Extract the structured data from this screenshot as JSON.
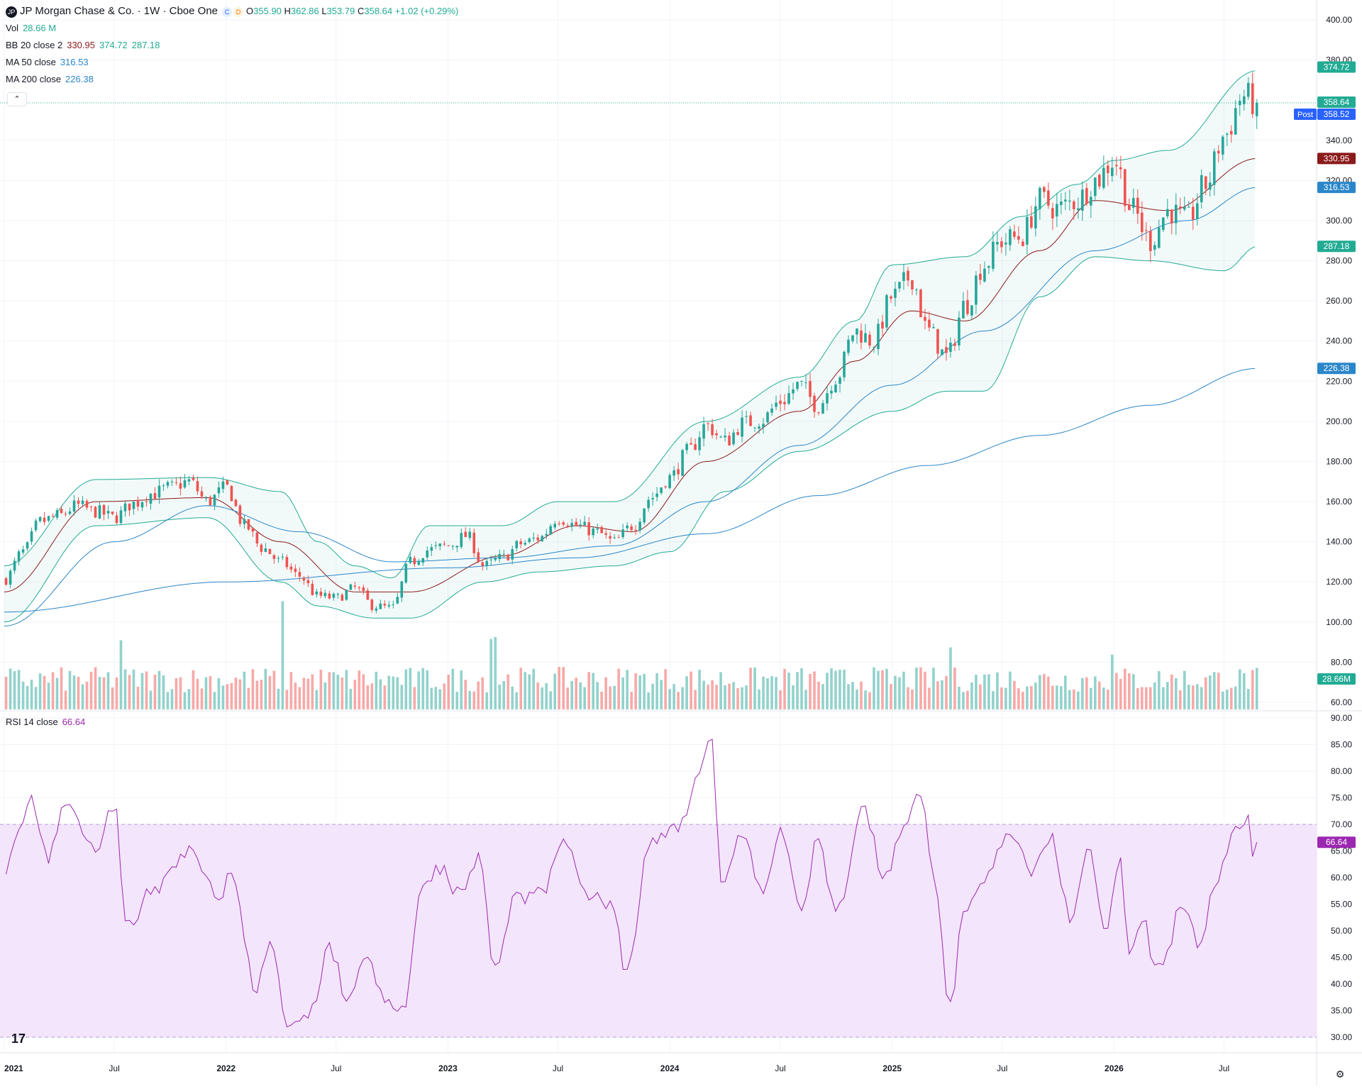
{
  "header": {
    "logo_text": "JP",
    "title": "JP Morgan Chase & Co. · 1W · Cboe One",
    "status_c": "C",
    "status_d": "D",
    "open_label": "O",
    "open": "355.90",
    "high_label": "H",
    "high": "362.86",
    "low_label": "L",
    "low": "353.79",
    "close_label": "C",
    "close": "358.64",
    "change": "+1.02 (+0.29%)"
  },
  "indicators": {
    "vol": {
      "label": "Vol",
      "value": "28.66 M"
    },
    "bb": {
      "label": "BB 20 close 2",
      "basis": "330.95",
      "upper": "374.72",
      "lower": "287.18"
    },
    "ma50": {
      "label": "MA 50 close",
      "value": "316.53"
    },
    "ma200": {
      "label": "MA 200 close",
      "value": "226.38"
    },
    "rsi": {
      "label": "RSI 14 close",
      "value": "66.64"
    }
  },
  "price_tags": {
    "bb_upper": "374.72",
    "last": "358.64",
    "post_label": "Post",
    "post": "358.52",
    "bb_basis": "330.95",
    "ma50": "316.53",
    "bb_lower": "287.18",
    "ma200": "226.38",
    "volume": "28.66M",
    "rsi": "66.64"
  },
  "colors": {
    "up": "#26a69a",
    "down": "#ef5350",
    "bb_band": "#22ab94",
    "bb_basis": "#8b1a1a",
    "ma50": "#2a86c9",
    "ma200": "#2a86c9",
    "rsi_line": "#9c27b0",
    "rsi_fill": "#f3e5fb",
    "last_price": "#22ab94",
    "post": "#2962ff"
  },
  "icons": {
    "collapse": "chevron-up-icon",
    "tradingview": "tradingview-logo",
    "settings": "gear-icon"
  },
  "collapse_glyph": "⌃",
  "tv_glyph": "17",
  "settings_glyph": "⚙",
  "chart_data": [
    {
      "type": "candlestick",
      "title": "JP Morgan Chase & Co. · 1W · Cboe One",
      "interval": "1W",
      "ylim": [
        60,
        400
      ],
      "y_ticks": [
        "400.00",
        "380.00",
        "340.00",
        "320.00",
        "300.00",
        "280.00",
        "260.00",
        "240.00",
        "220.00",
        "200.00",
        "180.00",
        "160.00",
        "140.00",
        "120.00",
        "100.00",
        "80.00",
        "60.00"
      ],
      "x_ticks": [
        "2021",
        "Jul",
        "2022",
        "Jul",
        "2023",
        "Jul",
        "2024",
        "Jul",
        "2025",
        "Jul",
        "2026",
        "Jul"
      ],
      "x_tick_dates": [
        "2021-01-01",
        "2021-07-01",
        "2022-01-01",
        "2022-07-01",
        "2023-01-01",
        "2023-07-01",
        "2024-01-01",
        "2024-07-01",
        "2025-01-01",
        "2025-07-01",
        "2026-01-01",
        "2026-07-01"
      ],
      "x_range": [
        "2021-01-01",
        "2026-10-31"
      ],
      "grid": true,
      "price_anchors": [
        [
          "2021-01-01",
          121
        ],
        [
          "2021-02-01",
          135
        ],
        [
          "2021-03-01",
          150
        ],
        [
          "2021-04-01",
          153
        ],
        [
          "2021-05-01",
          158
        ],
        [
          "2021-06-01",
          155
        ],
        [
          "2021-07-01",
          152
        ],
        [
          "2021-08-01",
          159
        ],
        [
          "2021-09-01",
          164
        ],
        [
          "2021-10-01",
          167
        ],
        [
          "2021-11-01",
          170
        ],
        [
          "2021-12-01",
          160
        ],
        [
          "2022-01-01",
          167
        ],
        [
          "2022-02-01",
          148
        ],
        [
          "2022-03-01",
          137
        ],
        [
          "2022-04-01",
          130
        ],
        [
          "2022-05-01",
          123
        ],
        [
          "2022-06-01",
          113
        ],
        [
          "2022-07-01",
          112
        ],
        [
          "2022-08-01",
          117
        ],
        [
          "2022-09-01",
          108
        ],
        [
          "2022-10-01",
          107
        ],
        [
          "2022-11-01",
          130
        ],
        [
          "2022-12-01",
          136
        ],
        [
          "2023-01-01",
          138
        ],
        [
          "2023-02-01",
          143
        ],
        [
          "2023-03-01",
          128
        ],
        [
          "2023-04-01",
          132
        ],
        [
          "2023-05-01",
          139
        ],
        [
          "2023-06-01",
          142
        ],
        [
          "2023-07-01",
          152
        ],
        [
          "2023-08-01",
          148
        ],
        [
          "2023-09-01",
          145
        ],
        [
          "2023-10-01",
          140
        ],
        [
          "2023-11-01",
          148
        ],
        [
          "2023-12-01",
          162
        ],
        [
          "2024-01-01",
          172
        ],
        [
          "2024-02-01",
          185
        ],
        [
          "2024-03-01",
          198
        ],
        [
          "2024-04-01",
          190
        ],
        [
          "2024-05-01",
          199
        ],
        [
          "2024-06-01",
          201
        ],
        [
          "2024-07-01",
          210
        ],
        [
          "2024-08-01",
          218
        ],
        [
          "2024-09-01",
          208
        ],
        [
          "2024-10-01",
          222
        ],
        [
          "2024-11-01",
          245
        ],
        [
          "2024-12-01",
          240
        ],
        [
          "2025-01-01",
          262
        ],
        [
          "2025-02-01",
          272
        ],
        [
          "2025-03-01",
          245
        ],
        [
          "2025-04-01",
          232
        ],
        [
          "2025-05-01",
          258
        ],
        [
          "2025-06-01",
          278
        ],
        [
          "2025-07-01",
          290
        ],
        [
          "2025-08-01",
          292
        ],
        [
          "2025-09-01",
          310
        ],
        [
          "2025-10-01",
          306
        ],
        [
          "2025-11-01",
          310
        ],
        [
          "2025-12-01",
          320
        ],
        [
          "2026-01-01",
          330
        ],
        [
          "2026-02-01",
          305
        ],
        [
          "2026-03-01",
          290
        ],
        [
          "2026-04-01",
          305
        ],
        [
          "2026-05-01",
          300
        ],
        [
          "2026-06-01",
          318
        ],
        [
          "2026-07-01",
          342
        ],
        [
          "2026-08-01",
          362
        ],
        [
          "2026-08-25",
          358.64
        ]
      ],
      "bollinger": {
        "upper_anchors": [
          [
            "2021-01-01",
            128
          ],
          [
            "2021-06-01",
            171
          ],
          [
            "2021-12-01",
            172
          ],
          [
            "2022-04-01",
            165
          ],
          [
            "2022-06-01",
            140
          ],
          [
            "2022-08-01",
            128
          ],
          [
            "2022-10-01",
            122
          ],
          [
            "2022-12-01",
            148
          ],
          [
            "2023-04-01",
            148
          ],
          [
            "2023-07-01",
            160
          ],
          [
            "2023-10-01",
            160
          ],
          [
            "2024-03-01",
            200
          ],
          [
            "2024-08-01",
            222
          ],
          [
            "2024-11-01",
            250
          ],
          [
            "2025-01-01",
            278
          ],
          [
            "2025-05-01",
            282
          ],
          [
            "2025-08-01",
            302
          ],
          [
            "2025-11-01",
            318
          ],
          [
            "2026-01-01",
            330
          ],
          [
            "2026-04-01",
            335
          ],
          [
            "2026-08-25",
            374.72
          ]
        ],
        "lower_anchors": [
          [
            "2021-01-01",
            100
          ],
          [
            "2021-06-01",
            148
          ],
          [
            "2021-12-01",
            152
          ],
          [
            "2022-04-01",
            120
          ],
          [
            "2022-06-01",
            108
          ],
          [
            "2022-09-01",
            102
          ],
          [
            "2022-11-01",
            102
          ],
          [
            "2023-03-01",
            120
          ],
          [
            "2023-06-01",
            125
          ],
          [
            "2023-10-01",
            128
          ],
          [
            "2024-01-01",
            135
          ],
          [
            "2024-04-01",
            165
          ],
          [
            "2024-08-01",
            185
          ],
          [
            "2025-01-01",
            205
          ],
          [
            "2025-04-01",
            215
          ],
          [
            "2025-06-01",
            215
          ],
          [
            "2025-09-01",
            262
          ],
          [
            "2025-12-01",
            282
          ],
          [
            "2026-03-01",
            280
          ],
          [
            "2026-07-01",
            275
          ],
          [
            "2026-08-25",
            287.18
          ]
        ],
        "basis_anchors": [
          [
            "2021-01-01",
            115
          ],
          [
            "2021-06-01",
            160
          ],
          [
            "2021-12-01",
            162
          ],
          [
            "2022-04-01",
            140
          ],
          [
            "2022-08-01",
            115
          ],
          [
            "2022-11-01",
            115
          ],
          [
            "2023-04-01",
            133
          ],
          [
            "2023-08-01",
            148
          ],
          [
            "2023-11-01",
            145
          ],
          [
            "2024-03-01",
            180
          ],
          [
            "2024-08-01",
            205
          ],
          [
            "2024-11-01",
            230
          ],
          [
            "2025-02-01",
            255
          ],
          [
            "2025-05-01",
            250
          ],
          [
            "2025-09-01",
            285
          ],
          [
            "2025-12-01",
            310
          ],
          [
            "2026-04-01",
            305
          ],
          [
            "2026-08-25",
            330.95
          ]
        ]
      },
      "ma50_anchors": [
        [
          "2021-01-01",
          98
        ],
        [
          "2021-07-01",
          140
        ],
        [
          "2021-12-01",
          158
        ],
        [
          "2022-05-01",
          145
        ],
        [
          "2022-10-01",
          130
        ],
        [
          "2023-04-01",
          132
        ],
        [
          "2023-10-01",
          138
        ],
        [
          "2024-03-01",
          160
        ],
        [
          "2024-08-01",
          188
        ],
        [
          "2025-01-01",
          218
        ],
        [
          "2025-06-01",
          245
        ],
        [
          "2025-12-01",
          285
        ],
        [
          "2026-05-01",
          300
        ],
        [
          "2026-08-25",
          316.53
        ]
      ],
      "ma200_anchors": [
        [
          "2021-01-01",
          105
        ],
        [
          "2022-01-01",
          120
        ],
        [
          "2023-01-01",
          127
        ],
        [
          "2023-08-01",
          132
        ],
        [
          "2024-03-01",
          144
        ],
        [
          "2024-09-01",
          163
        ],
        [
          "2025-03-01",
          178
        ],
        [
          "2025-09-01",
          193
        ],
        [
          "2026-03-01",
          208
        ],
        [
          "2026-08-25",
          226.38
        ]
      ],
      "last_price": 358.64,
      "post_price": 358.52
    },
    {
      "type": "bar",
      "name": "Vol",
      "last_value": "28.66M",
      "spike_dates": [
        "2021-07-12",
        "2022-04-04",
        "2023-03-13",
        "2023-03-20",
        "2025-04-07",
        "2025-12-29"
      ],
      "typical_range": [
        18,
        45
      ]
    },
    {
      "type": "line",
      "name": "RSI 14 close",
      "ylim": [
        30,
        90
      ],
      "y_ticks": [
        "90.00",
        "85.00",
        "80.00",
        "75.00",
        "70.00",
        "65.00",
        "60.00",
        "55.00",
        "50.00",
        "45.00",
        "40.00",
        "35.00",
        "30.00"
      ],
      "band": [
        30,
        70
      ],
      "anchors": [
        [
          "2021-01-01",
          62
        ],
        [
          "2021-02-15",
          74
        ],
        [
          "2021-03-15",
          64
        ],
        [
          "2021-04-15",
          75
        ],
        [
          "2021-06-01",
          65
        ],
        [
          "2021-07-01",
          74
        ],
        [
          "2021-07-20",
          51
        ],
        [
          "2021-09-01",
          57
        ],
        [
          "2021-11-01",
          65
        ],
        [
          "2021-12-20",
          57
        ],
        [
          "2022-01-10",
          60
        ],
        [
          "2022-02-20",
          39
        ],
        [
          "2022-03-15",
          47
        ],
        [
          "2022-04-15",
          31
        ],
        [
          "2022-05-20",
          35
        ],
        [
          "2022-06-20",
          47
        ],
        [
          "2022-07-20",
          37
        ],
        [
          "2022-08-20",
          46
        ],
        [
          "2022-09-20",
          36
        ],
        [
          "2022-10-20",
          35
        ],
        [
          "2022-11-20",
          58
        ],
        [
          "2022-12-20",
          62
        ],
        [
          "2023-01-20",
          57
        ],
        [
          "2023-02-20",
          64
        ],
        [
          "2023-03-20",
          43
        ],
        [
          "2023-04-20",
          56
        ],
        [
          "2023-06-01",
          57
        ],
        [
          "2023-07-15",
          67
        ],
        [
          "2023-08-20",
          57
        ],
        [
          "2023-10-01",
          55
        ],
        [
          "2023-10-20",
          41
        ],
        [
          "2023-12-01",
          67
        ],
        [
          "2024-01-20",
          70
        ],
        [
          "2024-02-15",
          80
        ],
        [
          "2024-03-10",
          85
        ],
        [
          "2024-03-25",
          58
        ],
        [
          "2024-05-01",
          68
        ],
        [
          "2024-06-01",
          57
        ],
        [
          "2024-07-01",
          68
        ],
        [
          "2024-08-05",
          55
        ],
        [
          "2024-09-01",
          67
        ],
        [
          "2024-10-01",
          53
        ],
        [
          "2024-11-15",
          73
        ],
        [
          "2024-12-20",
          60
        ],
        [
          "2025-01-20",
          70
        ],
        [
          "2025-02-15",
          77
        ],
        [
          "2025-03-10",
          60
        ],
        [
          "2025-04-07",
          36
        ],
        [
          "2025-05-01",
          55
        ],
        [
          "2025-06-01",
          60
        ],
        [
          "2025-07-15",
          68
        ],
        [
          "2025-08-20",
          61
        ],
        [
          "2025-09-20",
          67
        ],
        [
          "2025-10-20",
          53
        ],
        [
          "2025-11-20",
          65
        ],
        [
          "2025-12-20",
          50
        ],
        [
          "2026-01-10",
          63
        ],
        [
          "2026-01-25",
          47
        ],
        [
          "2026-02-20",
          52
        ],
        [
          "2026-03-10",
          42
        ],
        [
          "2026-04-01",
          46
        ],
        [
          "2026-04-20",
          55
        ],
        [
          "2026-05-20",
          48
        ],
        [
          "2026-06-20",
          60
        ],
        [
          "2026-07-20",
          69
        ],
        [
          "2026-08-10",
          71
        ],
        [
          "2026-08-18",
          64
        ],
        [
          "2026-08-25",
          66.64
        ]
      ]
    }
  ]
}
